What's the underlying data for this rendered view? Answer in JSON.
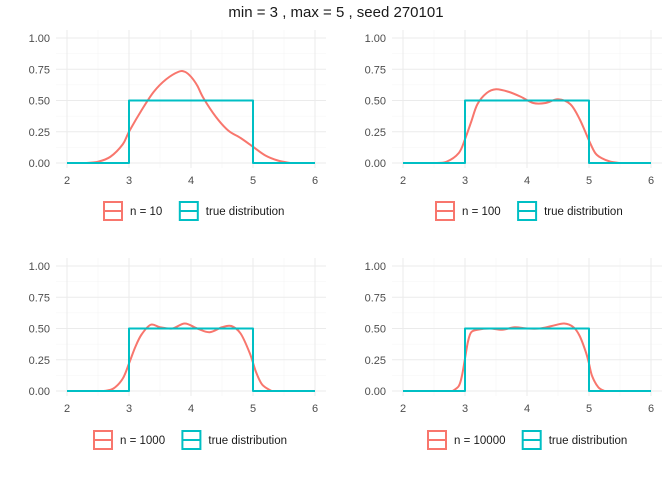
{
  "title": "min = 3 , max = 5 , seed 270101",
  "colors": {
    "estimate": "#F8766D",
    "truth": "#00BFC4",
    "grid_major": "#EBEBEB",
    "grid_minor": "#F5F5F5"
  },
  "chart_data": [
    {
      "type": "line",
      "title": "",
      "xlabel": "",
      "ylabel": "",
      "xlim": [
        2,
        6
      ],
      "ylim": [
        0,
        1
      ],
      "x_ticks": [
        "2",
        "3",
        "4",
        "5",
        "6"
      ],
      "y_ticks": [
        "0.00",
        "0.25",
        "0.50",
        "0.75",
        "1.00"
      ],
      "grid": true,
      "legend": "bottom",
      "series": [
        {
          "name": "n = 10",
          "color": "#F8766D",
          "x": [
            2.3,
            2.5,
            2.7,
            2.9,
            3.0,
            3.2,
            3.4,
            3.6,
            3.8,
            3.9,
            4.0,
            4.1,
            4.2,
            4.4,
            4.6,
            4.8,
            5.0,
            5.2,
            5.4,
            5.6
          ],
          "y": [
            0.0,
            0.01,
            0.05,
            0.15,
            0.25,
            0.42,
            0.57,
            0.67,
            0.73,
            0.73,
            0.69,
            0.62,
            0.52,
            0.37,
            0.26,
            0.2,
            0.13,
            0.06,
            0.02,
            0.0
          ]
        },
        {
          "name": "true distribution",
          "color": "#00BFC4",
          "x": [
            2,
            3,
            3,
            5,
            5,
            6
          ],
          "y": [
            0,
            0,
            0.5,
            0.5,
            0,
            0
          ]
        }
      ]
    },
    {
      "type": "line",
      "title": "",
      "xlabel": "",
      "ylabel": "",
      "xlim": [
        2,
        6
      ],
      "ylim": [
        0,
        1
      ],
      "x_ticks": [
        "2",
        "3",
        "4",
        "5",
        "6"
      ],
      "y_ticks": [
        "0.00",
        "0.25",
        "0.50",
        "0.75",
        "1.00"
      ],
      "grid": true,
      "legend": "bottom",
      "series": [
        {
          "name": "n = 100",
          "color": "#F8766D",
          "x": [
            2.5,
            2.7,
            2.9,
            3.0,
            3.1,
            3.2,
            3.35,
            3.5,
            3.7,
            3.9,
            4.1,
            4.3,
            4.5,
            4.7,
            4.85,
            5.0,
            5.1,
            5.2,
            5.35,
            5.5
          ],
          "y": [
            0.0,
            0.01,
            0.08,
            0.19,
            0.33,
            0.47,
            0.56,
            0.59,
            0.57,
            0.53,
            0.48,
            0.48,
            0.51,
            0.47,
            0.35,
            0.18,
            0.08,
            0.04,
            0.01,
            0.0
          ]
        },
        {
          "name": "true distribution",
          "color": "#00BFC4",
          "x": [
            2,
            3,
            3,
            5,
            5,
            6
          ],
          "y": [
            0,
            0,
            0.5,
            0.5,
            0,
            0
          ]
        }
      ]
    },
    {
      "type": "line",
      "title": "",
      "xlabel": "",
      "ylabel": "",
      "xlim": [
        2,
        6
      ],
      "ylim": [
        0,
        1
      ],
      "x_ticks": [
        "2",
        "3",
        "4",
        "5",
        "6"
      ],
      "y_ticks": [
        "0.00",
        "0.25",
        "0.50",
        "0.75",
        "1.00"
      ],
      "grid": true,
      "legend": "bottom",
      "series": [
        {
          "name": "n = 1000",
          "color": "#F8766D",
          "x": [
            2.6,
            2.75,
            2.9,
            3.0,
            3.1,
            3.2,
            3.35,
            3.5,
            3.7,
            3.9,
            4.1,
            4.3,
            4.5,
            4.65,
            4.8,
            4.95,
            5.05,
            5.15,
            5.3
          ],
          "y": [
            0.0,
            0.02,
            0.1,
            0.22,
            0.35,
            0.45,
            0.53,
            0.51,
            0.5,
            0.54,
            0.5,
            0.47,
            0.51,
            0.52,
            0.46,
            0.3,
            0.15,
            0.05,
            0.0
          ]
        },
        {
          "name": "true distribution",
          "color": "#00BFC4",
          "x": [
            2,
            3,
            3,
            5,
            5,
            6
          ],
          "y": [
            0,
            0,
            0.5,
            0.5,
            0,
            0
          ]
        }
      ]
    },
    {
      "type": "line",
      "title": "",
      "xlabel": "",
      "ylabel": "",
      "xlim": [
        2,
        6
      ],
      "ylim": [
        0,
        1
      ],
      "x_ticks": [
        "2",
        "3",
        "4",
        "5",
        "6"
      ],
      "y_ticks": [
        "0.00",
        "0.25",
        "0.50",
        "0.75",
        "1.00"
      ],
      "grid": true,
      "legend": "bottom",
      "series": [
        {
          "name": "n = 10000",
          "color": "#F8766D",
          "x": [
            2.8,
            2.9,
            2.95,
            3.0,
            3.05,
            3.1,
            3.2,
            3.4,
            3.6,
            3.8,
            4.0,
            4.2,
            4.4,
            4.6,
            4.75,
            4.85,
            4.95,
            5.0,
            5.05,
            5.15,
            5.25
          ],
          "y": [
            0.0,
            0.04,
            0.12,
            0.26,
            0.4,
            0.47,
            0.49,
            0.5,
            0.49,
            0.51,
            0.5,
            0.5,
            0.52,
            0.54,
            0.51,
            0.44,
            0.31,
            0.22,
            0.12,
            0.03,
            0.0
          ]
        },
        {
          "name": "true distribution",
          "color": "#00BFC4",
          "x": [
            2,
            3,
            3,
            5,
            5,
            6
          ],
          "y": [
            0,
            0,
            0.5,
            0.5,
            0,
            0
          ]
        }
      ]
    }
  ]
}
